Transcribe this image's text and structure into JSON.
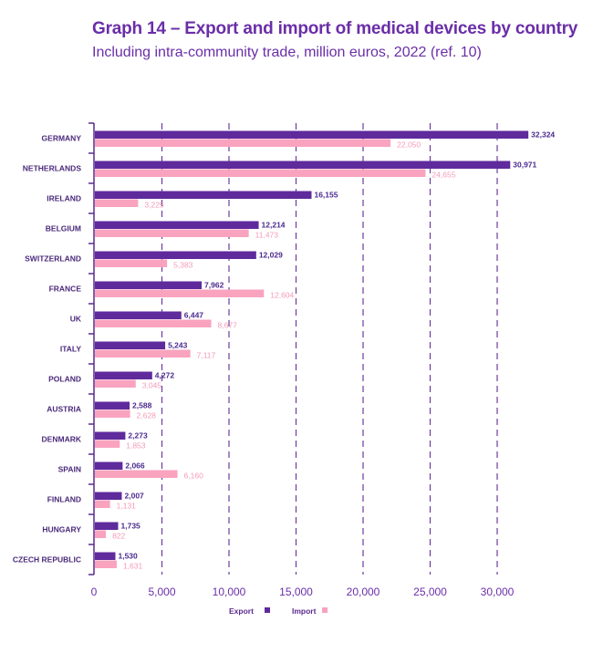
{
  "chart_data": {
    "type": "bar",
    "orientation": "horizontal",
    "title": "Graph 14 – Export and import of medical devices by country",
    "subtitle": "Including intra-community trade, million euros, 2022 (ref. 10)",
    "xlabel": "",
    "ylabel": "",
    "xlim": [
      0,
      30000
    ],
    "xticks": [
      0,
      5000,
      10000,
      15000,
      20000,
      25000,
      30000
    ],
    "xtick_labels": [
      "0",
      "5,000",
      "10,000",
      "15,000",
      "20,000",
      "25,000",
      "30,000"
    ],
    "grid": "vertical dashed",
    "legend_position": "bottom-center",
    "categories": [
      "GERMANY",
      "NETHERLANDS",
      "IRELAND",
      "BELGIUM",
      "SWITZERLAND",
      "FRANCE",
      "UK",
      "ITALY",
      "POLAND",
      "AUSTRIA",
      "DENMARK",
      "SPAIN",
      "FINLAND",
      "HUNGARY",
      "CZECH REPUBLIC"
    ],
    "series": [
      {
        "name": "Export",
        "color": "#5f2a9c",
        "values": [
          32324,
          30971,
          16155,
          12214,
          12029,
          7962,
          6447,
          5243,
          4272,
          2588,
          2273,
          2066,
          2007,
          1735,
          1530
        ],
        "labels": [
          "32,324",
          "30,971",
          "16,155",
          "12,214",
          "12,029",
          "7,962",
          "6,447",
          "5,243",
          "4,272",
          "2,588",
          "2,273",
          "2,066",
          "2,007",
          "1,735",
          "1,530"
        ]
      },
      {
        "name": "Import",
        "color": "#f9a3bf",
        "values": [
          22050,
          24655,
          3225,
          11473,
          5383,
          12604,
          8677,
          7117,
          3045,
          2628,
          1853,
          6160,
          1131,
          822,
          1631
        ],
        "labels": [
          "22,050",
          "24,655",
          "3,225",
          "11,473",
          "5,383",
          "12,604",
          "8,677",
          "7,117",
          "3,045",
          "2,628",
          "1,853",
          "6,160",
          "1,131",
          "822",
          "1,631"
        ]
      }
    ]
  }
}
